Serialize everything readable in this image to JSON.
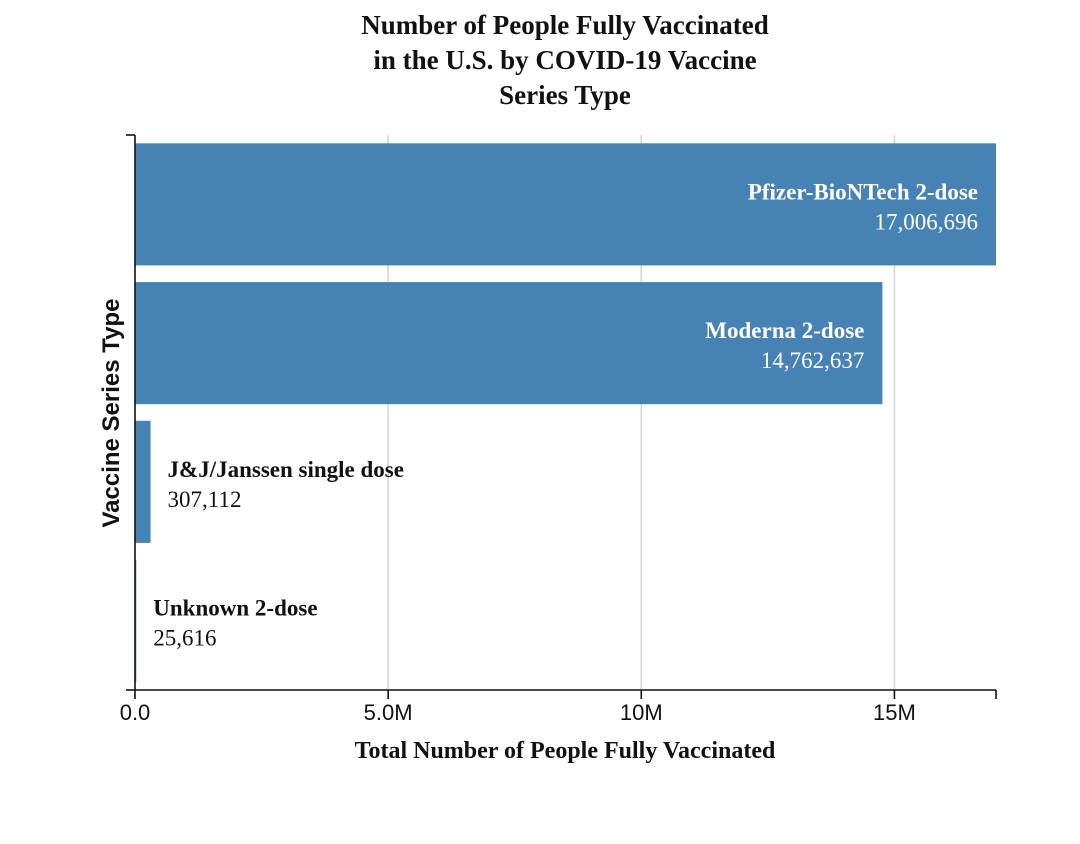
{
  "chart_data": {
    "type": "bar",
    "orientation": "horizontal",
    "title_lines": [
      "Number of People Fully Vaccinated",
      "in the U.S. by COVID-19 Vaccine",
      "Series Type"
    ],
    "xlabel": "Total Number of People Fully Vaccinated",
    "ylabel": "Vaccine Series Type",
    "xlim": [
      0,
      17006696
    ],
    "x_ticks": [
      {
        "value": 0,
        "label": "0.0"
      },
      {
        "value": 5000000,
        "label": "5.0M"
      },
      {
        "value": 10000000,
        "label": "10M"
      },
      {
        "value": 15000000,
        "label": "15M"
      }
    ],
    "grid": true,
    "bar_color": "#4682b4",
    "categories": [
      "Pfizer-BioNTech 2-dose",
      "Moderna 2-dose",
      "J&J/Janssen single dose",
      "Unknown 2-dose"
    ],
    "values": [
      17006696,
      14762637,
      307112,
      25616
    ],
    "value_labels": [
      "17,006,696",
      "14,762,637",
      "307,112",
      "25,616"
    ]
  }
}
